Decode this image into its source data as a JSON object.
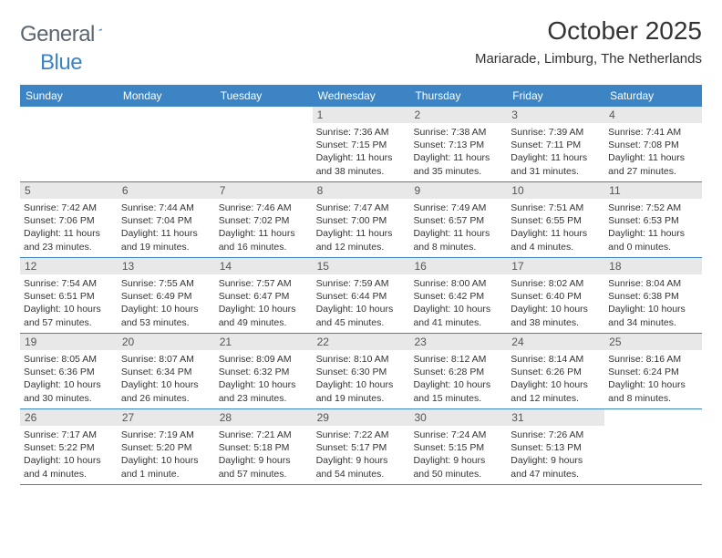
{
  "brand": {
    "name1": "General",
    "name2": "Blue"
  },
  "title": "October 2025",
  "location": "Mariarade, Limburg, The Netherlands",
  "colors": {
    "header_bg": "#3c84c4",
    "daynum_bg": "#e8e8e8",
    "text": "#333333",
    "logo_gray": "#5a6570",
    "logo_blue": "#3c84c4",
    "border": "#3c84c4"
  },
  "weekdays": [
    "Sunday",
    "Monday",
    "Tuesday",
    "Wednesday",
    "Thursday",
    "Friday",
    "Saturday"
  ],
  "weeks": [
    [
      {
        "n": "",
        "empty": true
      },
      {
        "n": "",
        "empty": true
      },
      {
        "n": "",
        "empty": true
      },
      {
        "n": "1",
        "rise": "7:36 AM",
        "set": "7:15 PM",
        "dl": "11 hours and 38 minutes."
      },
      {
        "n": "2",
        "rise": "7:38 AM",
        "set": "7:13 PM",
        "dl": "11 hours and 35 minutes."
      },
      {
        "n": "3",
        "rise": "7:39 AM",
        "set": "7:11 PM",
        "dl": "11 hours and 31 minutes."
      },
      {
        "n": "4",
        "rise": "7:41 AM",
        "set": "7:08 PM",
        "dl": "11 hours and 27 minutes."
      }
    ],
    [
      {
        "n": "5",
        "rise": "7:42 AM",
        "set": "7:06 PM",
        "dl": "11 hours and 23 minutes."
      },
      {
        "n": "6",
        "rise": "7:44 AM",
        "set": "7:04 PM",
        "dl": "11 hours and 19 minutes."
      },
      {
        "n": "7",
        "rise": "7:46 AM",
        "set": "7:02 PM",
        "dl": "11 hours and 16 minutes."
      },
      {
        "n": "8",
        "rise": "7:47 AM",
        "set": "7:00 PM",
        "dl": "11 hours and 12 minutes."
      },
      {
        "n": "9",
        "rise": "7:49 AM",
        "set": "6:57 PM",
        "dl": "11 hours and 8 minutes."
      },
      {
        "n": "10",
        "rise": "7:51 AM",
        "set": "6:55 PM",
        "dl": "11 hours and 4 minutes."
      },
      {
        "n": "11",
        "rise": "7:52 AM",
        "set": "6:53 PM",
        "dl": "11 hours and 0 minutes."
      }
    ],
    [
      {
        "n": "12",
        "rise": "7:54 AM",
        "set": "6:51 PM",
        "dl": "10 hours and 57 minutes."
      },
      {
        "n": "13",
        "rise": "7:55 AM",
        "set": "6:49 PM",
        "dl": "10 hours and 53 minutes."
      },
      {
        "n": "14",
        "rise": "7:57 AM",
        "set": "6:47 PM",
        "dl": "10 hours and 49 minutes."
      },
      {
        "n": "15",
        "rise": "7:59 AM",
        "set": "6:44 PM",
        "dl": "10 hours and 45 minutes."
      },
      {
        "n": "16",
        "rise": "8:00 AM",
        "set": "6:42 PM",
        "dl": "10 hours and 41 minutes."
      },
      {
        "n": "17",
        "rise": "8:02 AM",
        "set": "6:40 PM",
        "dl": "10 hours and 38 minutes."
      },
      {
        "n": "18",
        "rise": "8:04 AM",
        "set": "6:38 PM",
        "dl": "10 hours and 34 minutes."
      }
    ],
    [
      {
        "n": "19",
        "rise": "8:05 AM",
        "set": "6:36 PM",
        "dl": "10 hours and 30 minutes."
      },
      {
        "n": "20",
        "rise": "8:07 AM",
        "set": "6:34 PM",
        "dl": "10 hours and 26 minutes."
      },
      {
        "n": "21",
        "rise": "8:09 AM",
        "set": "6:32 PM",
        "dl": "10 hours and 23 minutes."
      },
      {
        "n": "22",
        "rise": "8:10 AM",
        "set": "6:30 PM",
        "dl": "10 hours and 19 minutes."
      },
      {
        "n": "23",
        "rise": "8:12 AM",
        "set": "6:28 PM",
        "dl": "10 hours and 15 minutes."
      },
      {
        "n": "24",
        "rise": "8:14 AM",
        "set": "6:26 PM",
        "dl": "10 hours and 12 minutes."
      },
      {
        "n": "25",
        "rise": "8:16 AM",
        "set": "6:24 PM",
        "dl": "10 hours and 8 minutes."
      }
    ],
    [
      {
        "n": "26",
        "rise": "7:17 AM",
        "set": "5:22 PM",
        "dl": "10 hours and 4 minutes."
      },
      {
        "n": "27",
        "rise": "7:19 AM",
        "set": "5:20 PM",
        "dl": "10 hours and 1 minute."
      },
      {
        "n": "28",
        "rise": "7:21 AM",
        "set": "5:18 PM",
        "dl": "9 hours and 57 minutes."
      },
      {
        "n": "29",
        "rise": "7:22 AM",
        "set": "5:17 PM",
        "dl": "9 hours and 54 minutes."
      },
      {
        "n": "30",
        "rise": "7:24 AM",
        "set": "5:15 PM",
        "dl": "9 hours and 50 minutes."
      },
      {
        "n": "31",
        "rise": "7:26 AM",
        "set": "5:13 PM",
        "dl": "9 hours and 47 minutes."
      },
      {
        "n": "",
        "empty": true
      }
    ]
  ],
  "labels": {
    "sunrise": "Sunrise:",
    "sunset": "Sunset:",
    "daylight": "Daylight:"
  }
}
